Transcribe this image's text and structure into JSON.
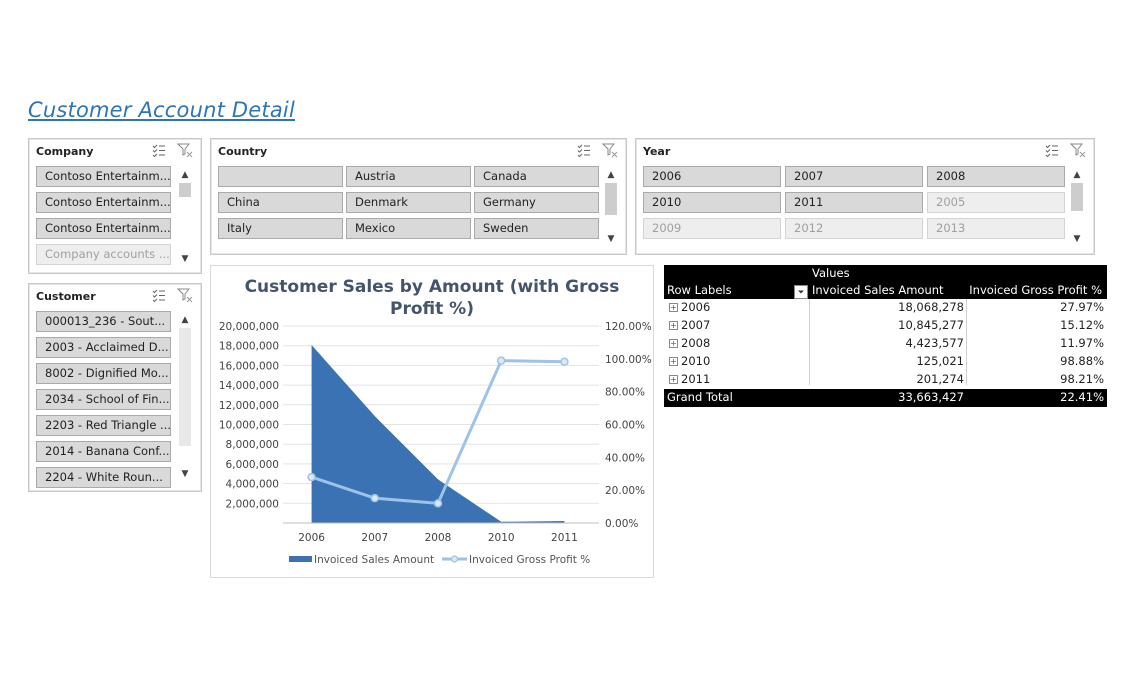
{
  "page": {
    "title": "Customer Account Detail"
  },
  "slicers": {
    "company": {
      "header": "Company",
      "items": [
        {
          "label": "Contoso Entertainm...",
          "dim": false
        },
        {
          "label": "Contoso Entertainm...",
          "dim": false
        },
        {
          "label": "Contoso Entertainm...",
          "dim": false
        },
        {
          "label": "Company accounts ...",
          "dim": true
        }
      ]
    },
    "country": {
      "header": "Country",
      "items": [
        {
          "label": "",
          "dim": false
        },
        {
          "label": "Austria",
          "dim": false
        },
        {
          "label": "Canada",
          "dim": false
        },
        {
          "label": "China",
          "dim": false
        },
        {
          "label": "Denmark",
          "dim": false
        },
        {
          "label": "Germany",
          "dim": false
        },
        {
          "label": "Italy",
          "dim": false
        },
        {
          "label": "Mexico",
          "dim": false
        },
        {
          "label": "Sweden",
          "dim": false
        }
      ]
    },
    "year": {
      "header": "Year",
      "items": [
        {
          "label": "2006",
          "dim": false
        },
        {
          "label": "2007",
          "dim": false
        },
        {
          "label": "2008",
          "dim": false
        },
        {
          "label": "2010",
          "dim": false
        },
        {
          "label": "2011",
          "dim": false
        },
        {
          "label": "2005",
          "dim": true
        },
        {
          "label": "2009",
          "dim": true
        },
        {
          "label": "2012",
          "dim": true
        },
        {
          "label": "2013",
          "dim": true
        }
      ]
    },
    "customer": {
      "header": "Customer",
      "items": [
        {
          "label": "000013_236 - Sout...",
          "dim": false
        },
        {
          "label": "2003 - Acclaimed D...",
          "dim": false
        },
        {
          "label": "8002 - Dignified Mo...",
          "dim": false
        },
        {
          "label": "2034 - School of Fin...",
          "dim": false
        },
        {
          "label": "2203 - Red Triangle ...",
          "dim": false
        },
        {
          "label": "2014 - Banana Conf...",
          "dim": false
        },
        {
          "label": "2204 - White Roun...",
          "dim": false
        }
      ]
    }
  },
  "chart_data": {
    "type": "area",
    "title": "Customer Sales by Amount (with Gross Profit %)",
    "categories": [
      "2006",
      "2007",
      "2008",
      "2010",
      "2011"
    ],
    "y_ticks": [
      "2,000,000",
      "4,000,000",
      "6,000,000",
      "8,000,000",
      "10,000,000",
      "12,000,000",
      "14,000,000",
      "16,000,000",
      "18,000,000",
      "20,000,000"
    ],
    "y2_ticks": [
      "0.00%",
      "20.00%",
      "40.00%",
      "60.00%",
      "80.00%",
      "100.00%",
      "120.00%"
    ],
    "ylim": [
      0,
      20000000
    ],
    "y2lim": [
      0,
      1.2
    ],
    "series": [
      {
        "name": "Invoiced Sales Amount",
        "type": "area",
        "axis": "left",
        "color": "#3b72b4",
        "values": [
          18068278,
          10845277,
          4423577,
          125021,
          201274
        ]
      },
      {
        "name": "Invoiced Gross Profit %",
        "type": "line",
        "axis": "right",
        "color": "#9dc3e6",
        "values": [
          0.2797,
          0.1512,
          0.1197,
          0.9888,
          0.9821
        ]
      }
    ],
    "legend": "bottom",
    "grid": true
  },
  "pivot": {
    "values_label": "Values",
    "row_labels": "Row Labels",
    "col1": "Invoiced Sales Amount",
    "col2": "Invoiced Gross Profit %",
    "rows": [
      {
        "year": "2006",
        "amount": "18,068,278",
        "pct": "27.97%"
      },
      {
        "year": "2007",
        "amount": "10,845,277",
        "pct": "15.12%"
      },
      {
        "year": "2008",
        "amount": "4,423,577",
        "pct": "11.97%"
      },
      {
        "year": "2010",
        "amount": "125,021",
        "pct": "98.88%"
      },
      {
        "year": "2011",
        "amount": "201,274",
        "pct": "98.21%"
      }
    ],
    "total": {
      "label": "Grand Total",
      "amount": "33,663,427",
      "pct": "22.41%"
    }
  }
}
